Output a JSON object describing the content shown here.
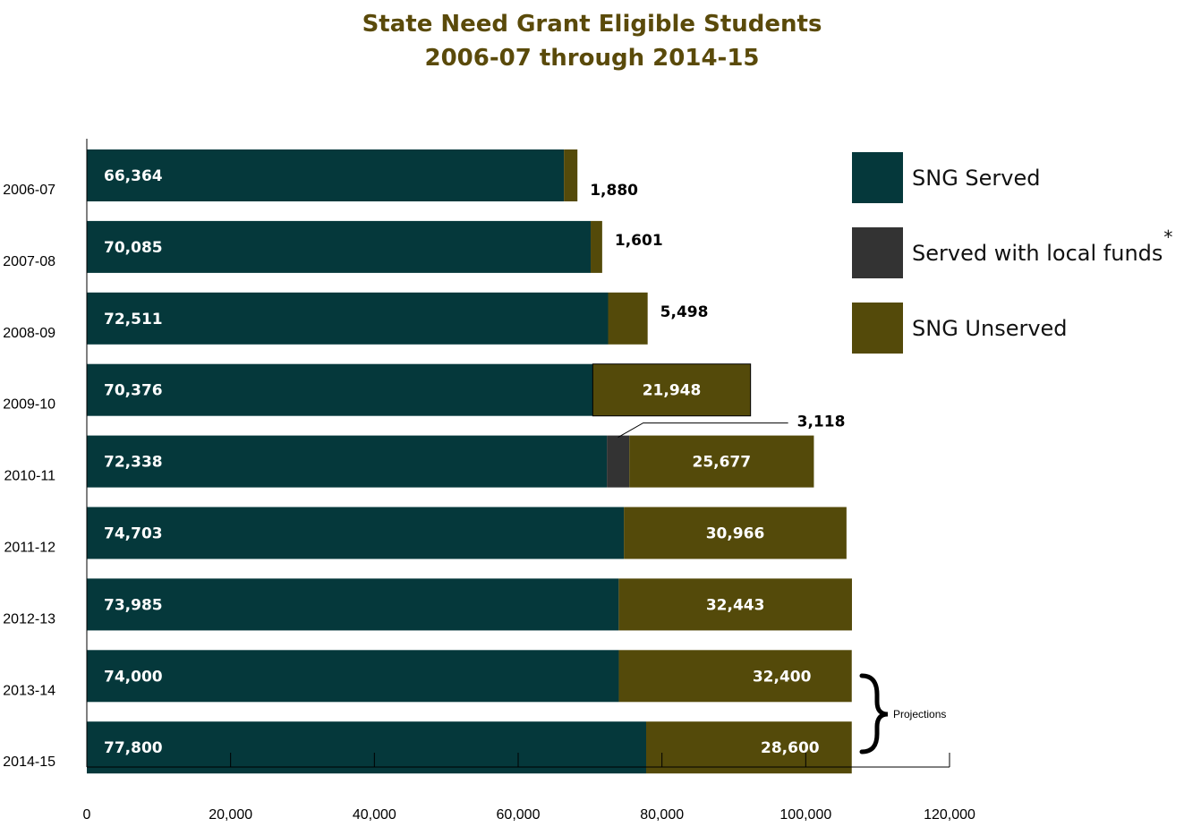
{
  "chart_data": {
    "type": "bar",
    "orientation": "horizontal",
    "stacked": true,
    "title": "State Need Grant Eligible Students",
    "subtitle": "2006-07 through 2014-15",
    "categories": [
      "2006-07",
      "2007-08",
      "2008-09",
      "2009-10",
      "2010-11",
      "2011-12",
      "2012-13",
      "2013-14",
      "2014-15"
    ],
    "series": [
      {
        "name": "SNG Served",
        "color": "#05383b",
        "values": [
          66364,
          70085,
          72511,
          70376,
          72338,
          74703,
          73985,
          74000,
          77800
        ],
        "labels": [
          "66,364",
          "70,085",
          "72,511",
          "70,376",
          "72,338",
          "74,703",
          "73,985",
          "74,000",
          "77,800"
        ]
      },
      {
        "name": "Served with local funds",
        "legend_mark": "*",
        "color": "#333333",
        "values": [
          0,
          0,
          0,
          0,
          3118,
          0,
          0,
          0,
          0
        ],
        "labels": [
          "",
          "",
          "",
          "",
          "3,118",
          "",
          "",
          "",
          ""
        ]
      },
      {
        "name": "SNG Unserved",
        "color": "#544a0a",
        "values": [
          1880,
          1601,
          5498,
          21948,
          25677,
          30966,
          32443,
          32400,
          28600
        ],
        "labels": [
          "1,880",
          "1,601",
          "5,498",
          "21,948",
          "25,677",
          "30,966",
          "32,443",
          "32,400",
          "28,600"
        ]
      }
    ],
    "xlim": [
      0,
      120000
    ],
    "xticks": [
      0,
      20000,
      40000,
      60000,
      80000,
      100000,
      120000
    ],
    "xtick_labels": [
      "0",
      "20,000",
      "40,000",
      "60,000",
      "80,000",
      "100,000",
      "120,000"
    ],
    "grid": false,
    "legend_position": "top-right",
    "annotation": {
      "text": "Projections",
      "applies_to": [
        "2013-14",
        "2014-15"
      ]
    }
  }
}
